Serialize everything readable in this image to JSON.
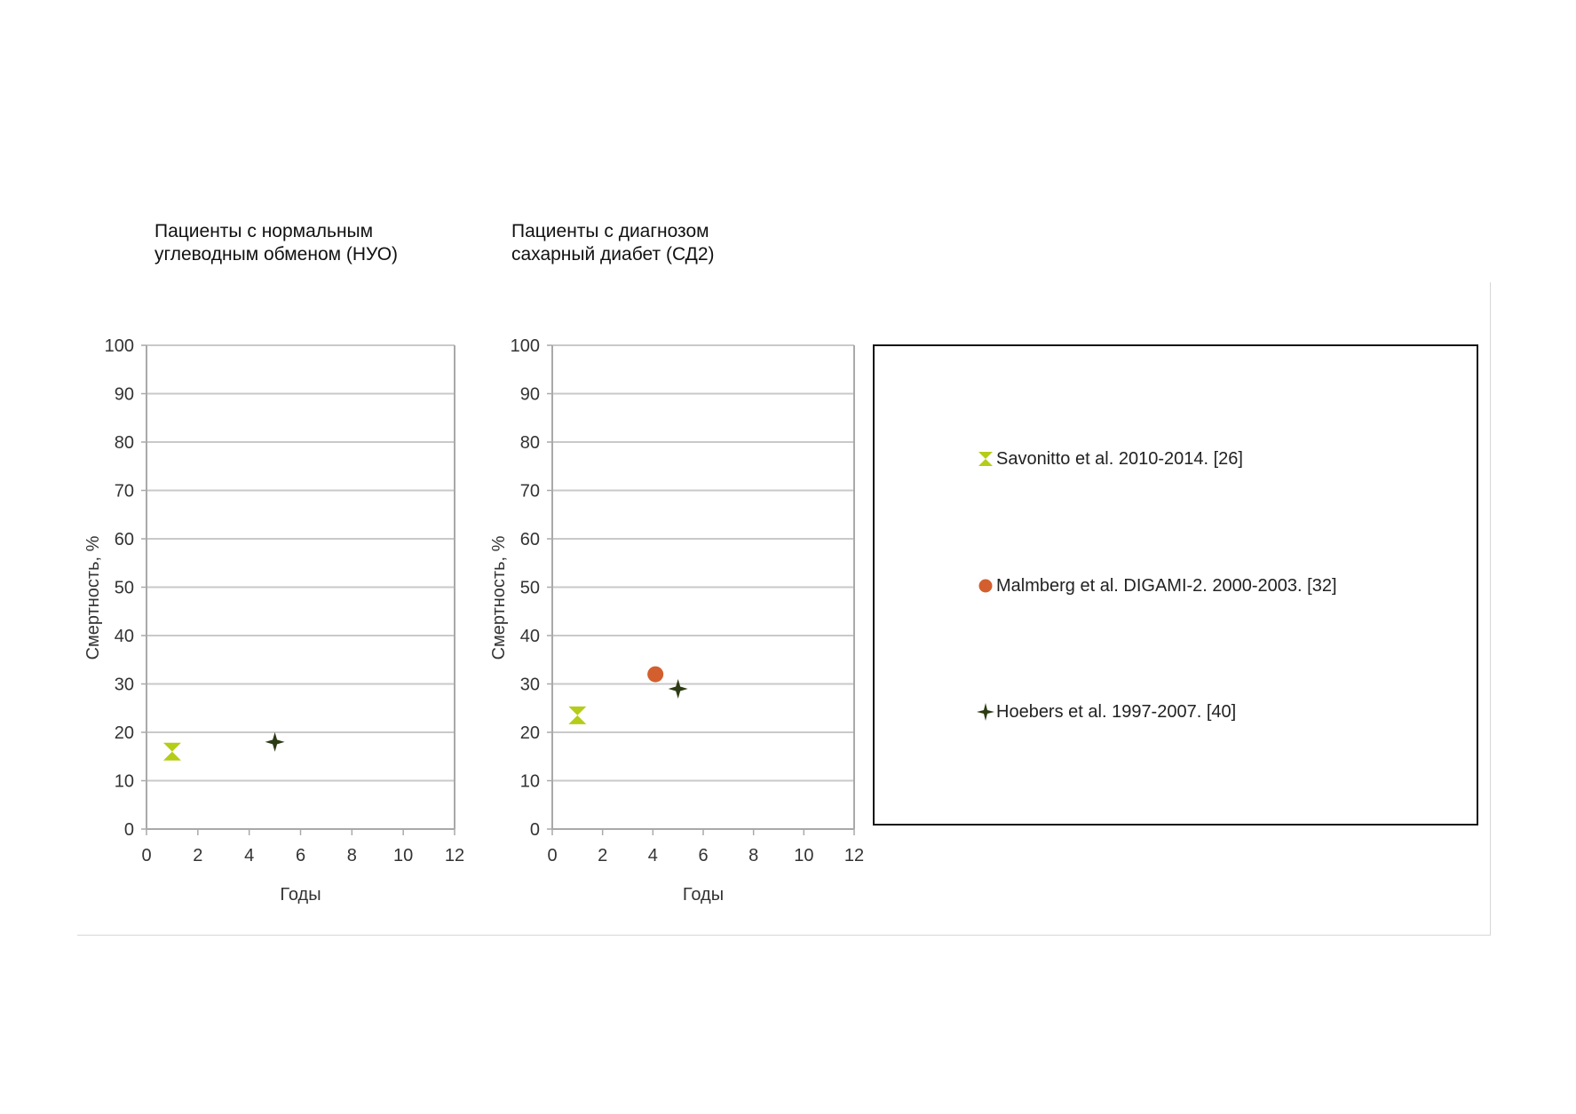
{
  "titles": {
    "panel1": [
      "Пациенты с нормальным",
      "углеводным обменом (НУО)"
    ],
    "panel2": [
      "Пациенты с диагнозом",
      "сахарный диабет (СД2)"
    ]
  },
  "colors": {
    "savonitto": "#b5cc18",
    "malmberg": "#d35f2e",
    "hoebers": "#2d3b14",
    "grid": "#c9c9c9",
    "axis": "#a9a9a9"
  },
  "legend": {
    "items": [
      {
        "label": "Savonitto et al. 2010-2014. [26]",
        "marker": "hourglass-marker-icon",
        "color": "#b5cc18"
      },
      {
        "label": "Malmberg et al. DIGAMI-2. 2000-2003. [32]",
        "marker": "circle-marker-icon",
        "color": "#d35f2e"
      },
      {
        "label": "Hoebers et al. 1997-2007. [40]",
        "marker": "star-marker-icon",
        "color": "#2d3b14"
      }
    ]
  },
  "chart_data": [
    {
      "type": "scatter",
      "title": "Пациенты с нормальным углеводным обменом (НУО)",
      "xlabel": "Годы",
      "ylabel": "Смертность, %",
      "xlim": [
        0,
        12
      ],
      "ylim": [
        0,
        100
      ],
      "xticks": [
        "0",
        "2",
        "4",
        "6",
        "8",
        "10",
        "12"
      ],
      "yticks": [
        "0",
        "10",
        "20",
        "30",
        "40",
        "50",
        "60",
        "70",
        "80",
        "90",
        "100"
      ],
      "grid": true,
      "series": [
        {
          "name": "Savonitto et al. 2010-2014. [26]",
          "marker": "hourglass",
          "color": "#b5cc18",
          "x": [
            1
          ],
          "y": [
            16
          ]
        },
        {
          "name": "Hoebers et al. 1997-2007. [40]",
          "marker": "star",
          "color": "#2d3b14",
          "x": [
            5
          ],
          "y": [
            18
          ]
        }
      ]
    },
    {
      "type": "scatter",
      "title": "Пациенты с диагнозом сахарный диабет (СД2)",
      "xlabel": "Годы",
      "ylabel": "Смертность, %",
      "xlim": [
        0,
        12
      ],
      "ylim": [
        0,
        100
      ],
      "xticks": [
        "0",
        "2",
        "4",
        "6",
        "8",
        "10",
        "12"
      ],
      "yticks": [
        "0",
        "10",
        "20",
        "30",
        "40",
        "50",
        "60",
        "70",
        "80",
        "90",
        "100"
      ],
      "grid": true,
      "series": [
        {
          "name": "Savonitto et al. 2010-2014. [26]",
          "marker": "hourglass",
          "color": "#b5cc18",
          "x": [
            1
          ],
          "y": [
            23.5
          ]
        },
        {
          "name": "Malmberg et al. DIGAMI-2. 2000-2003. [32]",
          "marker": "circle",
          "color": "#d35f2e",
          "x": [
            4.1
          ],
          "y": [
            32
          ]
        },
        {
          "name": "Hoebers et al. 1997-2007. [40]",
          "marker": "star",
          "color": "#2d3b14",
          "x": [
            5
          ],
          "y": [
            29
          ]
        }
      ]
    }
  ]
}
